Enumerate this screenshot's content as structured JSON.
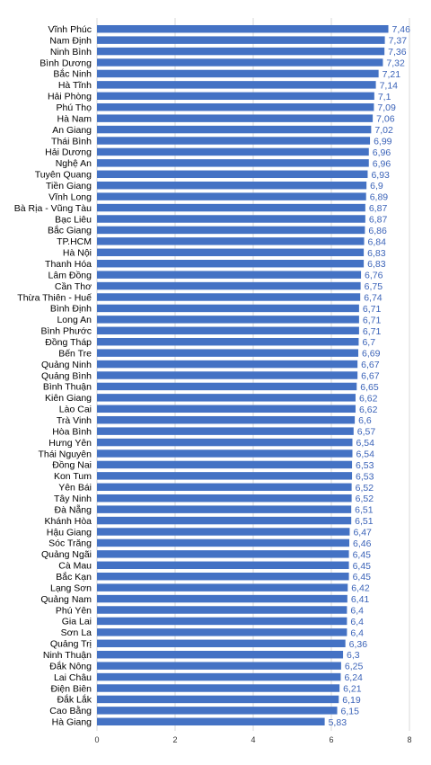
{
  "chart_data": {
    "type": "bar",
    "orientation": "horizontal",
    "title": "",
    "xlabel": "",
    "ylabel": "",
    "xlim": [
      0,
      8
    ],
    "x_ticks": [
      "0",
      "2",
      "4",
      "6",
      "8"
    ],
    "grid": true,
    "bar_color": "#4472c4",
    "label_color": "#3b63b8",
    "categories": [
      "Vĩnh Phúc",
      "Nam Định",
      "Ninh Bình",
      "Bình Dương",
      "Bắc Ninh",
      "Hà Tĩnh",
      "Hải Phòng",
      "Phú Thọ",
      "Hà Nam",
      "An Giang",
      "Thái Bình",
      "Hải Dương",
      "Nghệ An",
      "Tuyên Quang",
      "Tiền Giang",
      "Vĩnh Long",
      "Bà Rịa - Vũng Tàu",
      "Bạc Liêu",
      "Bắc Giang",
      "TP.HCM",
      "Hà Nội",
      "Thanh Hóa",
      "Lâm Đồng",
      "Cần Thơ",
      "Thừa Thiên - Huế",
      "Bình Định",
      "Long An",
      "Bình Phước",
      "Đồng Tháp",
      "Bến Tre",
      "Quảng Ninh",
      "Quảng Bình",
      "Bình Thuận",
      "Kiên Giang",
      "Lào Cai",
      "Trà Vinh",
      "Hòa Bình",
      "Hưng Yên",
      "Thái Nguyên",
      "Đồng Nai",
      "Kon Tum",
      "Yên Bái",
      "Tây Ninh",
      "Đà Nẵng",
      "Khánh Hòa",
      "Hậu Giang",
      "Sóc Trăng",
      "Quảng Ngãi",
      "Cà Mau",
      "Bắc Kạn",
      "Lạng Sơn",
      "Quảng Nam",
      "Phú Yên",
      "Gia Lai",
      "Sơn La",
      "Quảng Trị",
      "Ninh Thuận",
      "Đắk Nông",
      "Lai Châu",
      "Điện Biên",
      "Đắk Lắk",
      "Cao Bằng",
      "Hà Giang"
    ],
    "values": [
      7.46,
      7.37,
      7.36,
      7.32,
      7.21,
      7.14,
      7.1,
      7.09,
      7.06,
      7.02,
      6.99,
      6.96,
      6.96,
      6.93,
      6.9,
      6.89,
      6.87,
      6.87,
      6.86,
      6.84,
      6.83,
      6.83,
      6.76,
      6.75,
      6.74,
      6.71,
      6.71,
      6.71,
      6.7,
      6.69,
      6.67,
      6.67,
      6.65,
      6.62,
      6.62,
      6.6,
      6.57,
      6.54,
      6.54,
      6.53,
      6.53,
      6.52,
      6.52,
      6.51,
      6.51,
      6.47,
      6.46,
      6.45,
      6.45,
      6.45,
      6.42,
      6.41,
      6.4,
      6.4,
      6.4,
      6.36,
      6.3,
      6.25,
      6.24,
      6.21,
      6.19,
      6.15,
      5.83
    ],
    "value_labels": [
      "7,46",
      "7,37",
      "7,36",
      "7,32",
      "7,21",
      "7,14",
      "7,1",
      "7,09",
      "7,06",
      "7,02",
      "6,99",
      "6,96",
      "6,96",
      "6,93",
      "6,9",
      "6,89",
      "6,87",
      "6,87",
      "6,86",
      "6,84",
      "6,83",
      "6,83",
      "6,76",
      "6,75",
      "6,74",
      "6,71",
      "6,71",
      "6,71",
      "6,7",
      "6,69",
      "6,67",
      "6,67",
      "6,65",
      "6,62",
      "6,62",
      "6,6",
      "6,57",
      "6,54",
      "6,54",
      "6,53",
      "6,53",
      "6,52",
      "6,52",
      "6,51",
      "6,51",
      "6,47",
      "6,46",
      "6,45",
      "6,45",
      "6,45",
      "6,42",
      "6,41",
      "6,4",
      "6,4",
      "6,4",
      "6,36",
      "6,3",
      "6,25",
      "6,24",
      "6,21",
      "6,19",
      "6,15",
      "5,83"
    ]
  }
}
